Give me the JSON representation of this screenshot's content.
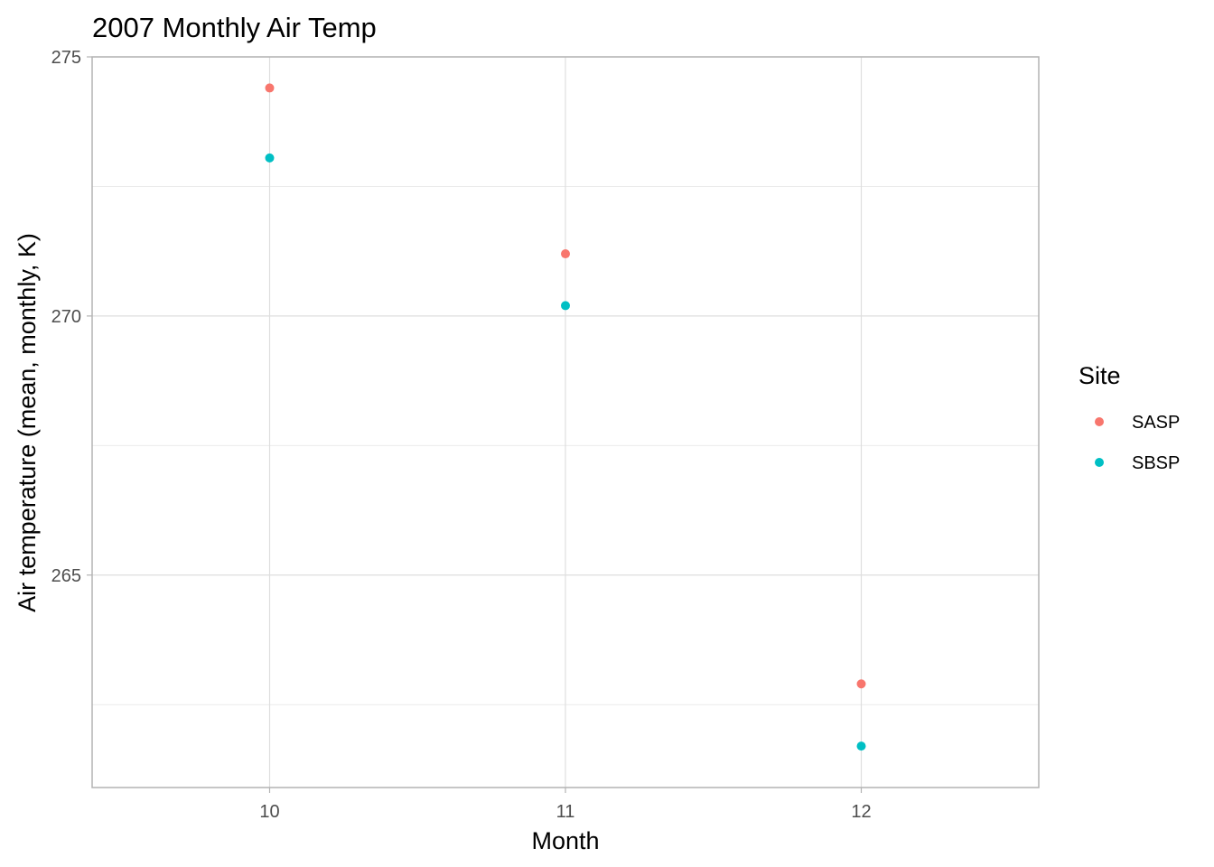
{
  "chart_data": {
    "type": "scatter",
    "title": "2007 Monthly Air Temp",
    "xlabel": "Month",
    "ylabel": "Air temperature (mean, monthly, K)",
    "x": [
      10,
      11,
      12
    ],
    "x_tick_labels": [
      "10",
      "11",
      "12"
    ],
    "xlim": [
      9.4,
      12.6
    ],
    "ylim": [
      260.9,
      275.0
    ],
    "y_ticks": [
      265,
      270,
      275
    ],
    "y_minor_ticks": [
      262.5,
      267.5,
      272.5
    ],
    "grid": true,
    "legend": {
      "title": "Site",
      "position": "right"
    },
    "series": [
      {
        "name": "SASP",
        "color": "#f8766d",
        "values": [
          274.4,
          271.2,
          262.9
        ]
      },
      {
        "name": "SBSP",
        "color": "#00bfc4",
        "values": [
          273.05,
          270.2,
          261.7
        ]
      }
    ]
  }
}
